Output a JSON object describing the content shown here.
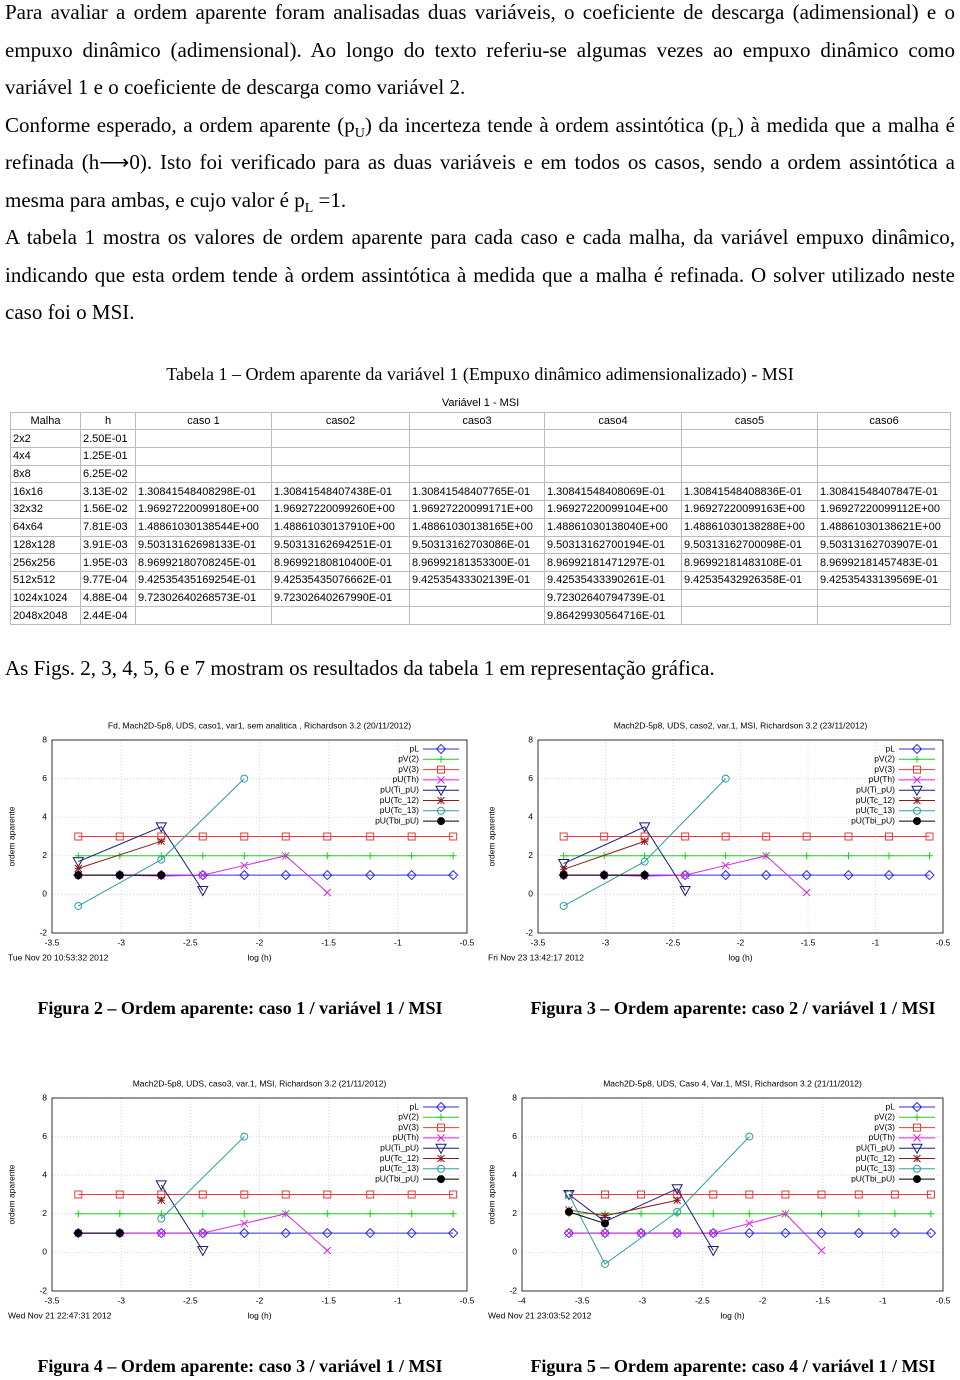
{
  "paragraphs": [
    [
      "Para avaliar a ordem aparente foram analisadas duas variáveis, o coeficiente de descarga (adimensional) e o empuxo dinâmico (adimensional). Ao longo do texto referiu-se algumas vezes ao empuxo dinâmico como variável 1 e o coeficiente de descarga como variável 2."
    ],
    [
      "Conforme esperado, a ordem aparente (p",
      "U",
      ") da incerteza tende à ordem assintótica (p",
      "L",
      ") à medida que a malha é refinada (h⟶0). Isto foi verificado para as duas variáveis e em todos os casos, sendo a ordem assintótica a mesma para ambas, e cujo valor é p",
      "L",
      " =1."
    ],
    [
      "A tabela 1 mostra os valores de ordem aparente para cada caso e cada malha, da variável empuxo dinâmico, indicando que esta ordem tende à ordem assintótica à medida que a malha é refinada. O solver utilizado neste caso foi o MSI."
    ]
  ],
  "table": {
    "title": "Tabela 1 – Ordem aparente da variável 1 (Empuxo dinâmico adimensionalizado) - MSI",
    "group_header": "Variável 1 - MSI",
    "columns": [
      "Malha",
      "h",
      "caso 1",
      "caso2",
      "caso3",
      "caso4",
      "caso5",
      "caso6"
    ],
    "rows": [
      [
        "2x2",
        "2.50E-01",
        null,
        null,
        null,
        null,
        null,
        null
      ],
      [
        "4x4",
        "1.25E-01",
        null,
        null,
        null,
        null,
        null,
        null
      ],
      [
        "8x8",
        "6.25E-02",
        null,
        null,
        null,
        null,
        null,
        null
      ],
      [
        "16x16",
        "3.13E-02",
        "1.30841548408298E-01",
        "1.30841548407438E-01",
        "1.30841548407765E-01",
        "1.30841548408069E-01",
        "1.30841548408836E-01",
        "1.30841548407847E-01"
      ],
      [
        "32x32",
        "1.56E-02",
        "1.96927220099180E+00",
        "1.96927220099260E+00",
        "1.96927220099171E+00",
        "1.96927220099104E+00",
        "1.96927220099163E+00",
        "1.96927220099112E+00"
      ],
      [
        "64x64",
        "7.81E-03",
        "1.48861030138544E+00",
        "1.48861030137910E+00",
        "1.48861030138165E+00",
        "1.48861030138040E+00",
        "1.48861030138288E+00",
        "1.48861030138621E+00"
      ],
      [
        "128x128",
        "3.91E-03",
        "9.50313162698133E-01",
        "9.50313162694251E-01",
        "9.50313162703086E-01",
        "9.50313162700194E-01",
        "9.50313162700098E-01",
        "9.50313162703907E-01"
      ],
      [
        "256x256",
        "1.95E-03",
        "8.96992180708245E-01",
        "8.96992180810400E-01",
        "8.96992181353300E-01",
        "8.96992181471297E-01",
        "8.96992181483108E-01",
        "8.96992181457483E-01"
      ],
      [
        "512x512",
        "9.77E-04",
        "9.42535435169254E-01",
        "9.42535435076662E-01",
        "9.42535433302139E-01",
        "9.42535433390261E-01",
        "9.42535432926358E-01",
        "9.42535433139569E-01"
      ],
      [
        "1024x1024",
        "4.88E-04",
        "9.72302640268573E-01",
        "9.72302640267990E-01",
        null,
        "9.72302640794739E-01",
        null,
        null
      ],
      [
        "2048x2048",
        "2.44E-04",
        null,
        null,
        null,
        "9.86429930564716E-01",
        null,
        null
      ]
    ]
  },
  "figures_intro": "As Figs. 2, 3, 4, 5, 6 e 7 mostram os resultados da tabela 1 em representação gráfica.",
  "chart_data": [
    {
      "type": "line",
      "title": "Fd, Mach2D-5p8, UDS, caso1, var1, sem analitica , Richardson 3.2 (20/11/2012)",
      "timestamp": "Tue Nov 20 10:53:32 2012",
      "xlabel": "log (h)",
      "ylabel": "ordem aparente",
      "caption": "Figura 2 – Ordem aparente: caso 1 / variável 1 / MSI",
      "xlim": [
        -3.5,
        -0.5
      ],
      "ylim": [
        -2,
        8
      ],
      "xticks": [
        -3.5,
        -3,
        -2.5,
        -2,
        -1.5,
        -1,
        -0.5
      ],
      "yticks": [
        -2,
        0,
        2,
        4,
        6,
        8
      ],
      "grid": true,
      "legend": "upper right",
      "series": [
        {
          "name": "pL",
          "color": "#2e2ee6",
          "marker": "diamond",
          "x": [
            -3.31,
            -3.01,
            -2.71,
            -2.41,
            -2.11,
            -1.81,
            -1.51,
            -1.2,
            -0.9,
            -0.6
          ],
          "values": [
            1,
            1,
            1,
            1,
            1,
            1,
            1,
            1,
            1,
            1
          ]
        },
        {
          "name": "pV(2)",
          "color": "#22cc22",
          "marker": "plus",
          "x": [
            -3.31,
            -3.01,
            -2.71,
            -2.41,
            -2.11,
            -1.81,
            -1.51,
            -1.2,
            -0.9,
            -0.6
          ],
          "values": [
            2,
            2,
            2,
            2,
            2,
            2,
            2,
            2,
            2,
            2
          ]
        },
        {
          "name": "pV(3)",
          "color": "#e63c3c",
          "marker": "square",
          "x": [
            -3.31,
            -3.01,
            -2.71,
            -2.41,
            -2.11,
            -1.81,
            -1.51,
            -1.2,
            -0.9,
            -0.6
          ],
          "values": [
            3,
            3,
            3,
            3,
            3,
            3,
            3,
            3,
            3,
            3
          ]
        },
        {
          "name": "pU(Th)",
          "color": "#dd22dd",
          "marker": "cross",
          "x": [
            -3.31,
            -3.01,
            -2.71,
            -2.41,
            -2.11,
            -1.81,
            -1.51
          ],
          "values": [
            1,
            1,
            0.95,
            1,
            1.5,
            2,
            0.1
          ]
        },
        {
          "name": "pU(Ti_pU)",
          "color": "#1a1a7a",
          "marker": "triangle-down",
          "x": [
            -3.31,
            -2.71,
            -2.41
          ],
          "values": [
            1.7,
            3.5,
            0.2
          ]
        },
        {
          "name": "pU(Tc_12)",
          "color": "#8b1a1a",
          "marker": "asterisk",
          "x": [
            -3.31,
            -2.71
          ],
          "values": [
            1.35,
            2.75
          ]
        },
        {
          "name": "pU(Tc_13)",
          "color": "#2f9e9e",
          "marker": "circle",
          "x": [
            -3.31,
            -2.71,
            -2.11
          ],
          "values": [
            -0.6,
            1.8,
            6
          ]
        },
        {
          "name": "pU(Tbi_pU)",
          "color": "#000000",
          "marker": "filled-circle",
          "x": [
            -3.31,
            -3.01,
            -2.71
          ],
          "values": [
            1,
            1,
            1
          ]
        }
      ]
    },
    {
      "type": "line",
      "title": "Mach2D-5p8, UDS, caso2, var.1, MSI, Richardson 3.2 (23/11/2012)",
      "timestamp": "Fri Nov 23 13:42:17 2012",
      "xlabel": "log (h)",
      "ylabel": "ordem aparente",
      "caption": "Figura 3 – Ordem aparente: caso 2 / variável 1 / MSI",
      "xlim": [
        -3.5,
        -0.5
      ],
      "ylim": [
        -2,
        8
      ],
      "xticks": [
        -3.5,
        -3,
        -2.5,
        -2,
        -1.5,
        -1,
        -0.5
      ],
      "yticks": [
        -2,
        0,
        2,
        4,
        6,
        8
      ],
      "grid": true,
      "legend": "upper right",
      "series": [
        {
          "name": "pL",
          "color": "#2e2ee6",
          "marker": "diamond",
          "x": [
            -3.31,
            -3.01,
            -2.71,
            -2.41,
            -2.11,
            -1.81,
            -1.51,
            -1.2,
            -0.9,
            -0.6
          ],
          "values": [
            1,
            1,
            1,
            1,
            1,
            1,
            1,
            1,
            1,
            1
          ]
        },
        {
          "name": "pV(2)",
          "color": "#22cc22",
          "marker": "plus",
          "x": [
            -3.31,
            -3.01,
            -2.71,
            -2.41,
            -2.11,
            -1.81,
            -1.51,
            -1.2,
            -0.9,
            -0.6
          ],
          "values": [
            2,
            2,
            2,
            2,
            2,
            2,
            2,
            2,
            2,
            2
          ]
        },
        {
          "name": "pV(3)",
          "color": "#e63c3c",
          "marker": "square",
          "x": [
            -3.31,
            -3.01,
            -2.71,
            -2.41,
            -2.11,
            -1.81,
            -1.51,
            -1.2,
            -0.9,
            -0.6
          ],
          "values": [
            3,
            3,
            3,
            3,
            3,
            3,
            3,
            3,
            3,
            3
          ]
        },
        {
          "name": "pU(Th)",
          "color": "#dd22dd",
          "marker": "cross",
          "x": [
            -3.31,
            -3.01,
            -2.71,
            -2.41,
            -2.11,
            -1.81,
            -1.51
          ],
          "values": [
            1,
            1,
            0.95,
            1,
            1.5,
            2,
            0.1
          ]
        },
        {
          "name": "pU(Ti_pU)",
          "color": "#1a1a7a",
          "marker": "triangle-down",
          "x": [
            -3.31,
            -2.71,
            -2.41
          ],
          "values": [
            1.6,
            3.5,
            0.2
          ]
        },
        {
          "name": "pU(Tc_12)",
          "color": "#8b1a1a",
          "marker": "asterisk",
          "x": [
            -3.31,
            -2.71
          ],
          "values": [
            1.3,
            2.75
          ]
        },
        {
          "name": "pU(Tc_13)",
          "color": "#2f9e9e",
          "marker": "circle",
          "x": [
            -3.31,
            -2.71,
            -2.11
          ],
          "values": [
            -0.6,
            1.7,
            6
          ]
        },
        {
          "name": "pU(Tbi_pU)",
          "color": "#000000",
          "marker": "filled-circle",
          "x": [
            -3.31,
            -3.01,
            -2.71
          ],
          "values": [
            1,
            1,
            1
          ]
        }
      ]
    },
    {
      "type": "line",
      "title": "Mach2D-5p8, UDS, caso3, var.1, MSI, Richardson 3.2 (21/11/2012)",
      "timestamp": "Wed Nov 21 22:47:31 2012",
      "xlabel": "log (h)",
      "ylabel": "ordem aparente",
      "caption": "Figura 4 – Ordem aparente: caso 3 / variável 1 / MSI",
      "xlim": [
        -3.5,
        -0.5
      ],
      "ylim": [
        -2,
        8
      ],
      "xticks": [
        -3.5,
        -3,
        -2.5,
        -2,
        -1.5,
        -1,
        -0.5
      ],
      "yticks": [
        -2,
        0,
        2,
        4,
        6,
        8
      ],
      "grid": true,
      "legend": "upper right",
      "series": [
        {
          "name": "pL",
          "color": "#2e2ee6",
          "marker": "diamond",
          "x": [
            -3.31,
            -3.01,
            -2.71,
            -2.41,
            -2.11,
            -1.81,
            -1.51,
            -1.2,
            -0.9,
            -0.6
          ],
          "values": [
            1,
            1,
            1,
            1,
            1,
            1,
            1,
            1,
            1,
            1
          ]
        },
        {
          "name": "pV(2)",
          "color": "#22cc22",
          "marker": "plus",
          "x": [
            -3.31,
            -3.01,
            -2.71,
            -2.41,
            -2.11,
            -1.81,
            -1.51,
            -1.2,
            -0.9,
            -0.6
          ],
          "values": [
            2,
            2,
            2,
            2,
            2,
            2,
            2,
            2,
            2,
            2
          ]
        },
        {
          "name": "pV(3)",
          "color": "#e63c3c",
          "marker": "square",
          "x": [
            -3.31,
            -3.01,
            -2.71,
            -2.41,
            -2.11,
            -1.81,
            -1.51,
            -1.2,
            -0.9,
            -0.6
          ],
          "values": [
            3,
            3,
            3,
            3,
            3,
            3,
            3,
            3,
            3,
            3
          ]
        },
        {
          "name": "pU(Th)",
          "color": "#dd22dd",
          "marker": "cross",
          "x": [
            -3.31,
            -3.01,
            -2.71,
            -2.41,
            -2.11,
            -1.81,
            -1.51
          ],
          "values": [
            1,
            1,
            1,
            1,
            1.5,
            2,
            0.1
          ]
        },
        {
          "name": "pU(Ti_pU)",
          "color": "#1a1a7a",
          "marker": "triangle-down",
          "x": [
            -2.71,
            -2.41
          ],
          "values": [
            3.5,
            0.1
          ]
        },
        {
          "name": "pU(Tc_12)",
          "color": "#8b1a1a",
          "marker": "asterisk",
          "x": [
            -2.71
          ],
          "values": [
            2.7
          ]
        },
        {
          "name": "pU(Tc_13)",
          "color": "#2f9e9e",
          "marker": "circle",
          "x": [
            -2.71,
            -2.11
          ],
          "values": [
            1.75,
            6
          ]
        },
        {
          "name": "pU(Tbi_pU)",
          "color": "#000000",
          "marker": "filled-circle",
          "x": [
            -3.31,
            -3.01
          ],
          "values": [
            1,
            1
          ]
        }
      ]
    },
    {
      "type": "line",
      "title": "Mach2D-5p8, UDS, Caso 4, Var.1, MSI, Richardson 3.2 (21/11/2012)",
      "timestamp": "Wed Nov 21 23:03:52 2012",
      "xlabel": "log (h)",
      "ylabel": "ordem aparente",
      "caption": "Figura 5 – Ordem aparente: caso 4 / variável 1 / MSI",
      "xlim": [
        -4,
        -0.5
      ],
      "ylim": [
        -2,
        8
      ],
      "xticks": [
        -4,
        -3.5,
        -3,
        -2.5,
        -2,
        -1.5,
        -1,
        -0.5
      ],
      "yticks": [
        -2,
        0,
        2,
        4,
        6,
        8
      ],
      "grid": true,
      "legend": "upper right",
      "series": [
        {
          "name": "pL",
          "color": "#2e2ee6",
          "marker": "diamond",
          "x": [
            -3.61,
            -3.31,
            -3.01,
            -2.71,
            -2.41,
            -2.11,
            -1.81,
            -1.51,
            -1.2,
            -0.9,
            -0.6
          ],
          "values": [
            1,
            1,
            1,
            1,
            1,
            1,
            1,
            1,
            1,
            1,
            1
          ]
        },
        {
          "name": "pV(2)",
          "color": "#22cc22",
          "marker": "plus",
          "x": [
            -3.61,
            -3.31,
            -3.01,
            -2.71,
            -2.41,
            -2.11,
            -1.81,
            -1.51,
            -1.2,
            -0.9,
            -0.6
          ],
          "values": [
            2,
            2,
            2,
            2,
            2,
            2,
            2,
            2,
            2,
            2,
            2
          ]
        },
        {
          "name": "pV(3)",
          "color": "#e63c3c",
          "marker": "square",
          "x": [
            -3.61,
            -3.31,
            -3.01,
            -2.71,
            -2.41,
            -2.11,
            -1.81,
            -1.51,
            -1.2,
            -0.9,
            -0.6
          ],
          "values": [
            3,
            3,
            3,
            3,
            3,
            3,
            3,
            3,
            3,
            3,
            3
          ]
        },
        {
          "name": "pU(Th)",
          "color": "#dd22dd",
          "marker": "cross",
          "x": [
            -3.61,
            -3.31,
            -3.01,
            -2.71,
            -2.41,
            -2.11,
            -1.81,
            -1.51
          ],
          "values": [
            1,
            1,
            1,
            1,
            1,
            1.5,
            2,
            0.1
          ]
        },
        {
          "name": "pU(Ti_pU)",
          "color": "#1a1a7a",
          "marker": "triangle-down",
          "x": [
            -3.61,
            -3.31,
            -2.71,
            -2.41
          ],
          "values": [
            3,
            1.6,
            3.3,
            0.1
          ]
        },
        {
          "name": "pU(Tc_12)",
          "color": "#8b1a1a",
          "marker": "asterisk",
          "x": [
            -3.61,
            -3.31,
            -2.71
          ],
          "values": [
            2.2,
            1.9,
            2.7
          ]
        },
        {
          "name": "pU(Tc_13)",
          "color": "#2f9e9e",
          "marker": "circle",
          "x": [
            -3.61,
            -3.31,
            -2.71,
            -2.11
          ],
          "values": [
            3,
            -0.6,
            2.1,
            6
          ]
        },
        {
          "name": "pU(Tbi_pU)",
          "color": "#000000",
          "marker": "filled-circle",
          "x": [
            -3.61,
            -3.31
          ],
          "values": [
            2.1,
            1.5
          ]
        }
      ]
    }
  ]
}
